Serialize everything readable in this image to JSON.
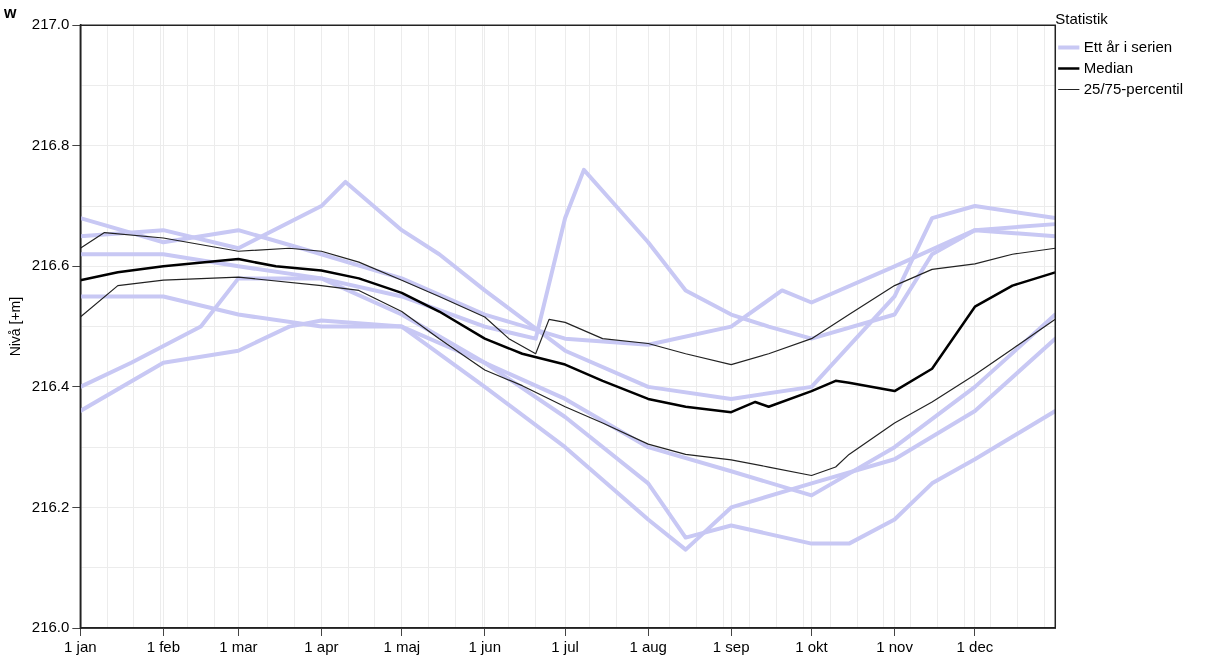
{
  "chart_data": {
    "type": "line",
    "title": "w",
    "ylabel": "Nivå [+m]",
    "legend_title": "Statistik",
    "legend": "top right",
    "grid": true,
    "marker": "none",
    "line_style": "solid",
    "xlim": [
      "--01-01",
      "--12-31"
    ],
    "xticks": [
      {
        "value": "--01-01",
        "label": "1 jan"
      },
      {
        "value": "--01-11",
        "label": null
      },
      {
        "value": "--01-21",
        "label": null
      },
      {
        "value": "--01-31",
        "label": null
      },
      {
        "value": "--02-01",
        "label": "1 feb"
      },
      {
        "value": "--02-10",
        "label": null
      },
      {
        "value": "--02-20",
        "label": null
      },
      {
        "value": "--03-01",
        "label": "1 mar"
      },
      {
        "value": "--03-12",
        "label": null
      },
      {
        "value": "--03-22",
        "label": null
      },
      {
        "value": "--04-01",
        "label": "1 apr"
      },
      {
        "value": "--04-11",
        "label": null
      },
      {
        "value": "--04-21",
        "label": null
      },
      {
        "value": "--05-01",
        "label": "1 maj"
      },
      {
        "value": "--05-11",
        "label": null
      },
      {
        "value": "--05-21",
        "label": null
      },
      {
        "value": "--05-31",
        "label": null
      },
      {
        "value": "--06-01",
        "label": "1 jun"
      },
      {
        "value": "--06-10",
        "label": null
      },
      {
        "value": "--06-20",
        "label": null
      },
      {
        "value": "--07-01",
        "label": "1 jul"
      },
      {
        "value": "--07-10",
        "label": null
      },
      {
        "value": "--07-20",
        "label": null
      },
      {
        "value": "--08-01",
        "label": "1 aug"
      },
      {
        "value": "--08-09",
        "label": null
      },
      {
        "value": "--08-19",
        "label": null
      },
      {
        "value": "--08-29",
        "label": null
      },
      {
        "value": "--09-01",
        "label": "1 sep"
      },
      {
        "value": "--09-08",
        "label": null
      },
      {
        "value": "--09-18",
        "label": null
      },
      {
        "value": "--09-28",
        "label": null
      },
      {
        "value": "--10-01",
        "label": "1 okt"
      },
      {
        "value": "--10-08",
        "label": null
      },
      {
        "value": "--10-18",
        "label": null
      },
      {
        "value": "--10-28",
        "label": null
      },
      {
        "value": "--11-01",
        "label": "1 nov"
      },
      {
        "value": "--11-07",
        "label": null
      },
      {
        "value": "--11-17",
        "label": null
      },
      {
        "value": "--11-27",
        "label": null
      },
      {
        "value": "--12-01",
        "label": "1 dec"
      },
      {
        "value": "--12-07",
        "label": null
      },
      {
        "value": "--12-17",
        "label": null
      },
      {
        "value": "--12-27",
        "label": null
      }
    ],
    "ylim": [
      216.0,
      217.0
    ],
    "yticks": [
      {
        "value": 216.0,
        "label": "216.0"
      },
      {
        "value": 216.1,
        "label": null
      },
      {
        "value": 216.2,
        "label": "216.2"
      },
      {
        "value": 216.3,
        "label": null
      },
      {
        "value": 216.4,
        "label": "216.4"
      },
      {
        "value": 216.5,
        "label": null
      },
      {
        "value": 216.6,
        "label": "216.6"
      },
      {
        "value": 216.7,
        "label": null
      },
      {
        "value": 216.8,
        "label": "216.8"
      },
      {
        "value": 216.9,
        "label": null
      },
      {
        "value": 217.0,
        "label": "217.0"
      }
    ],
    "series": [
      {
        "name": "Ett år i serien",
        "color": "#c8c8f4",
        "x": [
          "--01-01",
          "--02-01",
          "--03-01",
          "--04-01",
          "--05-01",
          "--06-01",
          "--06-20",
          "--07-01",
          "--07-08",
          "--07-20",
          "--08-01",
          "--08-15",
          "--09-01",
          "--09-15",
          "--10-01",
          "--11-01",
          "--11-15",
          "--12-01",
          "--12-31"
        ],
        "values": [
          216.62,
          216.62,
          216.6,
          216.58,
          216.55,
          216.5,
          216.48,
          216.68,
          216.76,
          216.7,
          216.64,
          216.56,
          216.52,
          216.5,
          216.48,
          216.52,
          216.62,
          216.66,
          216.65
        ]
      },
      {
        "color": "#c8c8f4",
        "x": [
          "--01-01",
          "--02-01",
          "--03-01",
          "--03-20",
          "--04-01",
          "--05-01",
          "--06-01",
          "--07-01",
          "--08-01",
          "--08-15",
          "--09-01",
          "--10-01",
          "--10-15",
          "--11-01",
          "--11-15",
          "--12-01",
          "--12-31"
        ],
        "values": [
          216.36,
          216.44,
          216.46,
          216.5,
          216.51,
          216.5,
          216.44,
          216.35,
          216.24,
          216.15,
          216.17,
          216.14,
          216.14,
          216.18,
          216.24,
          216.28,
          216.36
        ]
      },
      {
        "color": "#c8c8f4",
        "x": [
          "--01-01",
          "--02-01",
          "--03-01",
          "--04-01",
          "--04-10",
          "--05-01",
          "--05-15",
          "--06-01",
          "--07-01",
          "--08-01",
          "--09-01",
          "--10-01",
          "--11-01",
          "--11-15",
          "--12-01",
          "--12-31"
        ],
        "values": [
          216.65,
          216.66,
          216.63,
          216.7,
          216.74,
          216.66,
          216.62,
          216.56,
          216.46,
          216.4,
          216.38,
          216.4,
          216.55,
          216.68,
          216.7,
          216.68
        ]
      },
      {
        "color": "#c8c8f4",
        "x": [
          "--01-01",
          "--02-01",
          "--03-01",
          "--04-01",
          "--05-01",
          "--06-01",
          "--07-01",
          "--08-01",
          "--08-15",
          "--09-01",
          "--10-01",
          "--11-01",
          "--12-01",
          "--12-31"
        ],
        "values": [
          216.55,
          216.55,
          216.52,
          216.5,
          216.5,
          216.4,
          216.3,
          216.18,
          216.13,
          216.2,
          216.24,
          216.28,
          216.36,
          216.48
        ]
      },
      {
        "color": "#c8c8f4",
        "x": [
          "--01-01",
          "--02-01",
          "--03-01",
          "--04-01",
          "--05-01",
          "--06-01",
          "--07-01",
          "--08-01",
          "--09-01",
          "--09-20",
          "--10-01",
          "--11-01",
          "--12-01",
          "--12-31"
        ],
        "values": [
          216.68,
          216.64,
          216.66,
          216.62,
          216.58,
          216.52,
          216.48,
          216.47,
          216.5,
          216.56,
          216.54,
          216.6,
          216.66,
          216.67
        ]
      },
      {
        "color": "#c8c8f4",
        "x": [
          "--01-01",
          "--01-20",
          "--02-15",
          "--03-01",
          "--04-01",
          "--05-01",
          "--06-01",
          "--07-01",
          "--08-01",
          "--09-01",
          "--10-01",
          "--11-01",
          "--12-01",
          "--12-31"
        ],
        "values": [
          216.4,
          216.44,
          216.5,
          216.58,
          216.58,
          216.52,
          216.44,
          216.38,
          216.3,
          216.26,
          216.22,
          216.3,
          216.4,
          216.52
        ]
      },
      {
        "name": "Median",
        "color": "#000000",
        "x": [
          "--01-01",
          "--01-15",
          "--02-01",
          "--03-01",
          "--03-15",
          "--04-01",
          "--04-15",
          "--05-01",
          "--05-15",
          "--06-01",
          "--06-15",
          "--07-01",
          "--07-15",
          "--08-01",
          "--08-15",
          "--09-01",
          "--09-10",
          "--09-15",
          "--10-01",
          "--10-10",
          "--10-15",
          "--11-01",
          "--11-15",
          "--12-01",
          "--12-15",
          "--12-31"
        ],
        "values": [
          216.577,
          216.59,
          216.6,
          216.612,
          216.6,
          216.593,
          216.58,
          216.556,
          216.525,
          216.48,
          216.455,
          216.437,
          216.41,
          216.38,
          216.367,
          216.358,
          216.375,
          216.367,
          216.393,
          216.41,
          216.407,
          216.393,
          216.43,
          216.533,
          216.568,
          216.59
        ]
      },
      {
        "name": "25/75-percentil",
        "color": "#222222",
        "x": [
          "--01-01",
          "--01-10",
          "--02-01",
          "--03-01",
          "--03-20",
          "--04-01",
          "--04-15",
          "--05-01",
          "--05-15",
          "--06-01",
          "--06-10",
          "--06-20",
          "--06-25",
          "--07-01",
          "--07-15",
          "--08-01",
          "--08-15",
          "--09-01",
          "--09-15",
          "--10-01",
          "--10-15",
          "--11-01",
          "--11-15",
          "--12-01",
          "--12-15",
          "--12-31"
        ],
        "values": [
          216.63,
          216.656,
          216.647,
          216.625,
          216.63,
          216.625,
          216.607,
          216.577,
          216.55,
          216.516,
          216.48,
          216.455,
          216.512,
          216.507,
          216.48,
          216.472,
          216.455,
          216.437,
          216.455,
          216.48,
          216.52,
          216.568,
          216.595,
          216.604,
          216.62,
          216.63
        ]
      },
      {
        "color": "#222222",
        "x": [
          "--01-01",
          "--01-15",
          "--02-01",
          "--03-01",
          "--04-01",
          "--04-15",
          "--05-01",
          "--05-15",
          "--06-01",
          "--06-15",
          "--07-01",
          "--07-15",
          "--08-01",
          "--08-15",
          "--09-01",
          "--09-15",
          "--10-01",
          "--10-10",
          "--10-15",
          "--11-01",
          "--11-15",
          "--12-01",
          "--12-15",
          "--12-31"
        ],
        "values": [
          216.516,
          216.568,
          216.577,
          216.582,
          216.568,
          216.56,
          216.525,
          216.48,
          216.428,
          216.402,
          216.367,
          216.34,
          216.305,
          216.288,
          216.279,
          216.267,
          216.253,
          216.267,
          216.288,
          216.34,
          216.375,
          216.42,
          216.463,
          216.512
        ]
      }
    ]
  }
}
